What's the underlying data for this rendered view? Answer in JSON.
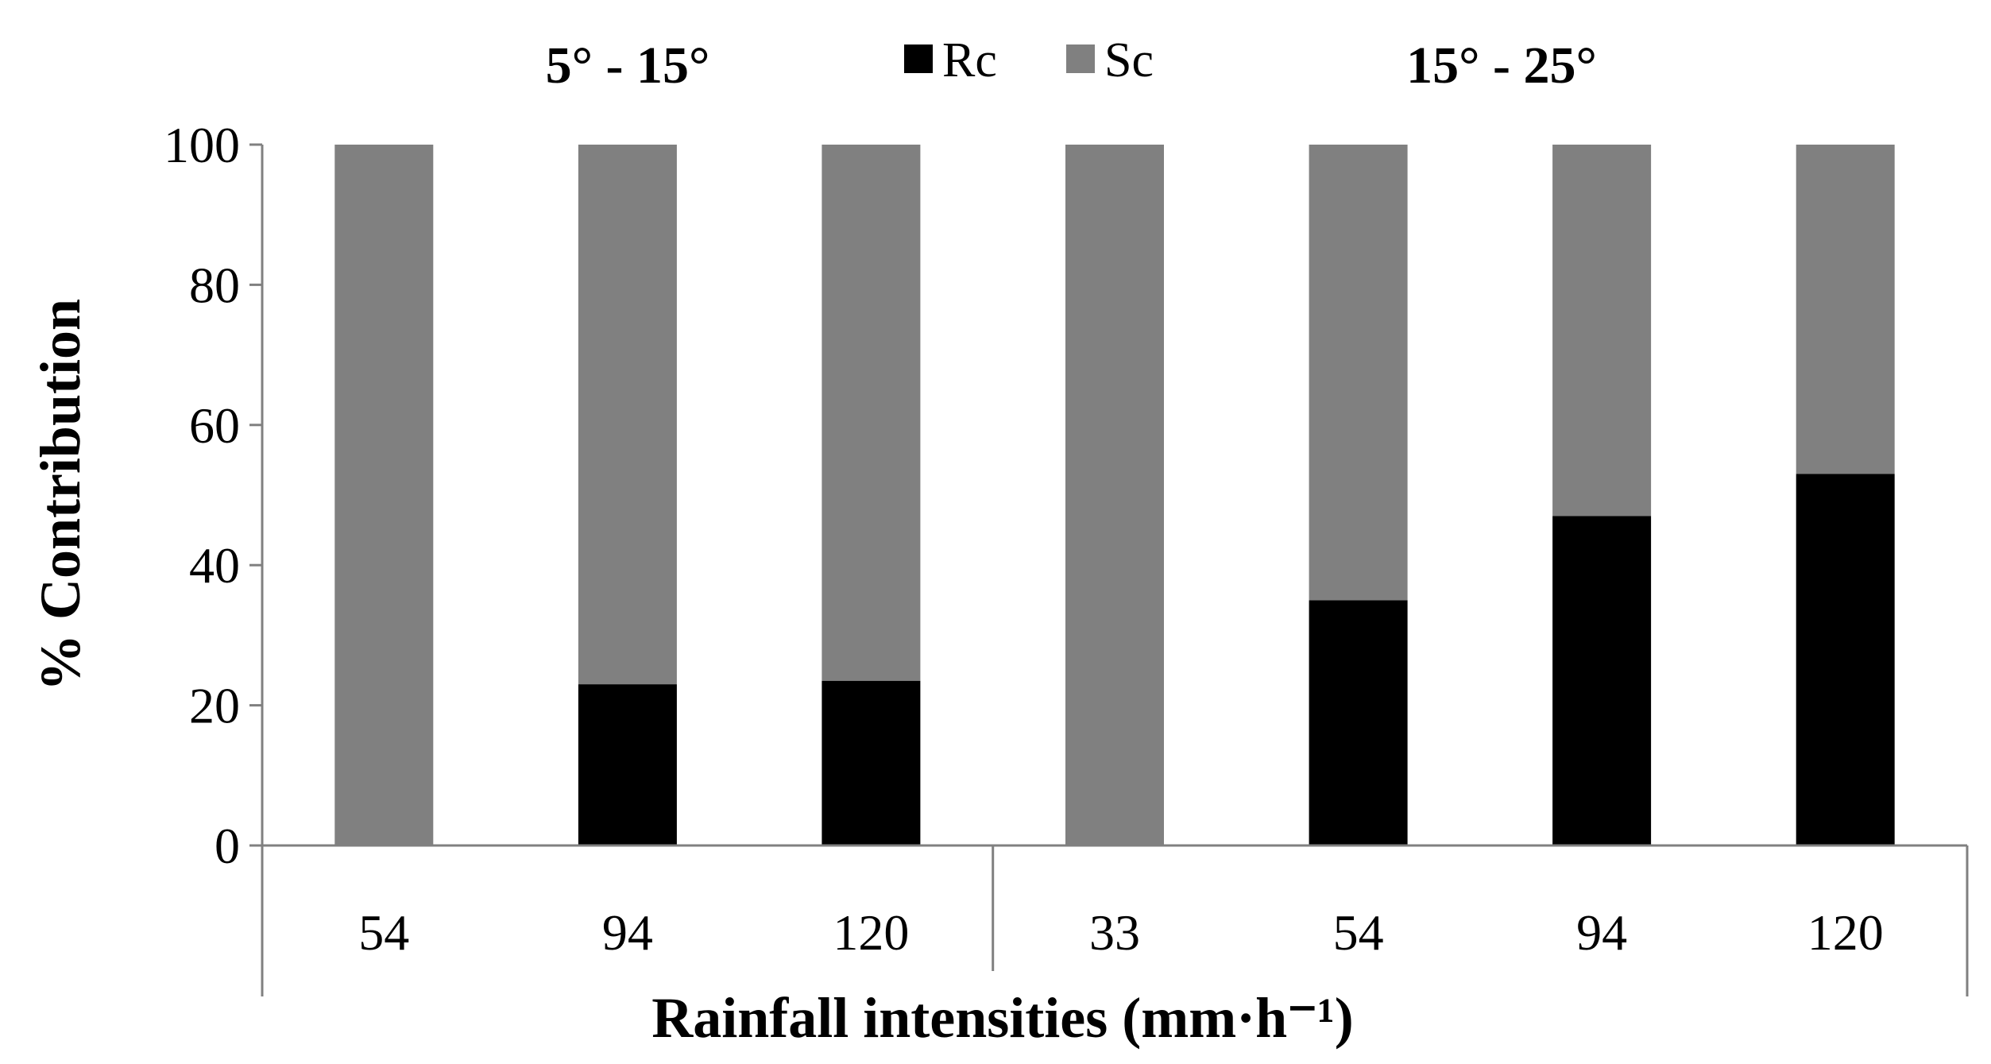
{
  "chart_data": {
    "type": "bar",
    "stacked": true,
    "groups": [
      {
        "label": "5° - 15°",
        "categories": [
          "54",
          "94",
          "120"
        ]
      },
      {
        "label": "15° - 25°",
        "categories": [
          "33",
          "54",
          "94",
          "120"
        ]
      }
    ],
    "categories": [
      "54",
      "94",
      "120",
      "33",
      "54",
      "94",
      "120"
    ],
    "series": [
      {
        "name": "Rc",
        "color": "#000000",
        "values": [
          0,
          23,
          23.5,
          0,
          35,
          47,
          53
        ]
      },
      {
        "name": "Sc",
        "color": "#808080",
        "values": [
          100,
          77,
          76.5,
          100,
          65,
          53,
          47
        ]
      }
    ],
    "xlabel": "Rainfall intensities (mm·h⁻¹)",
    "ylabel": "% Contribution",
    "ylim": [
      0,
      100
    ],
    "yticks": [
      0,
      20,
      40,
      60,
      80,
      100
    ],
    "grid": false,
    "legend_position": "top"
  }
}
